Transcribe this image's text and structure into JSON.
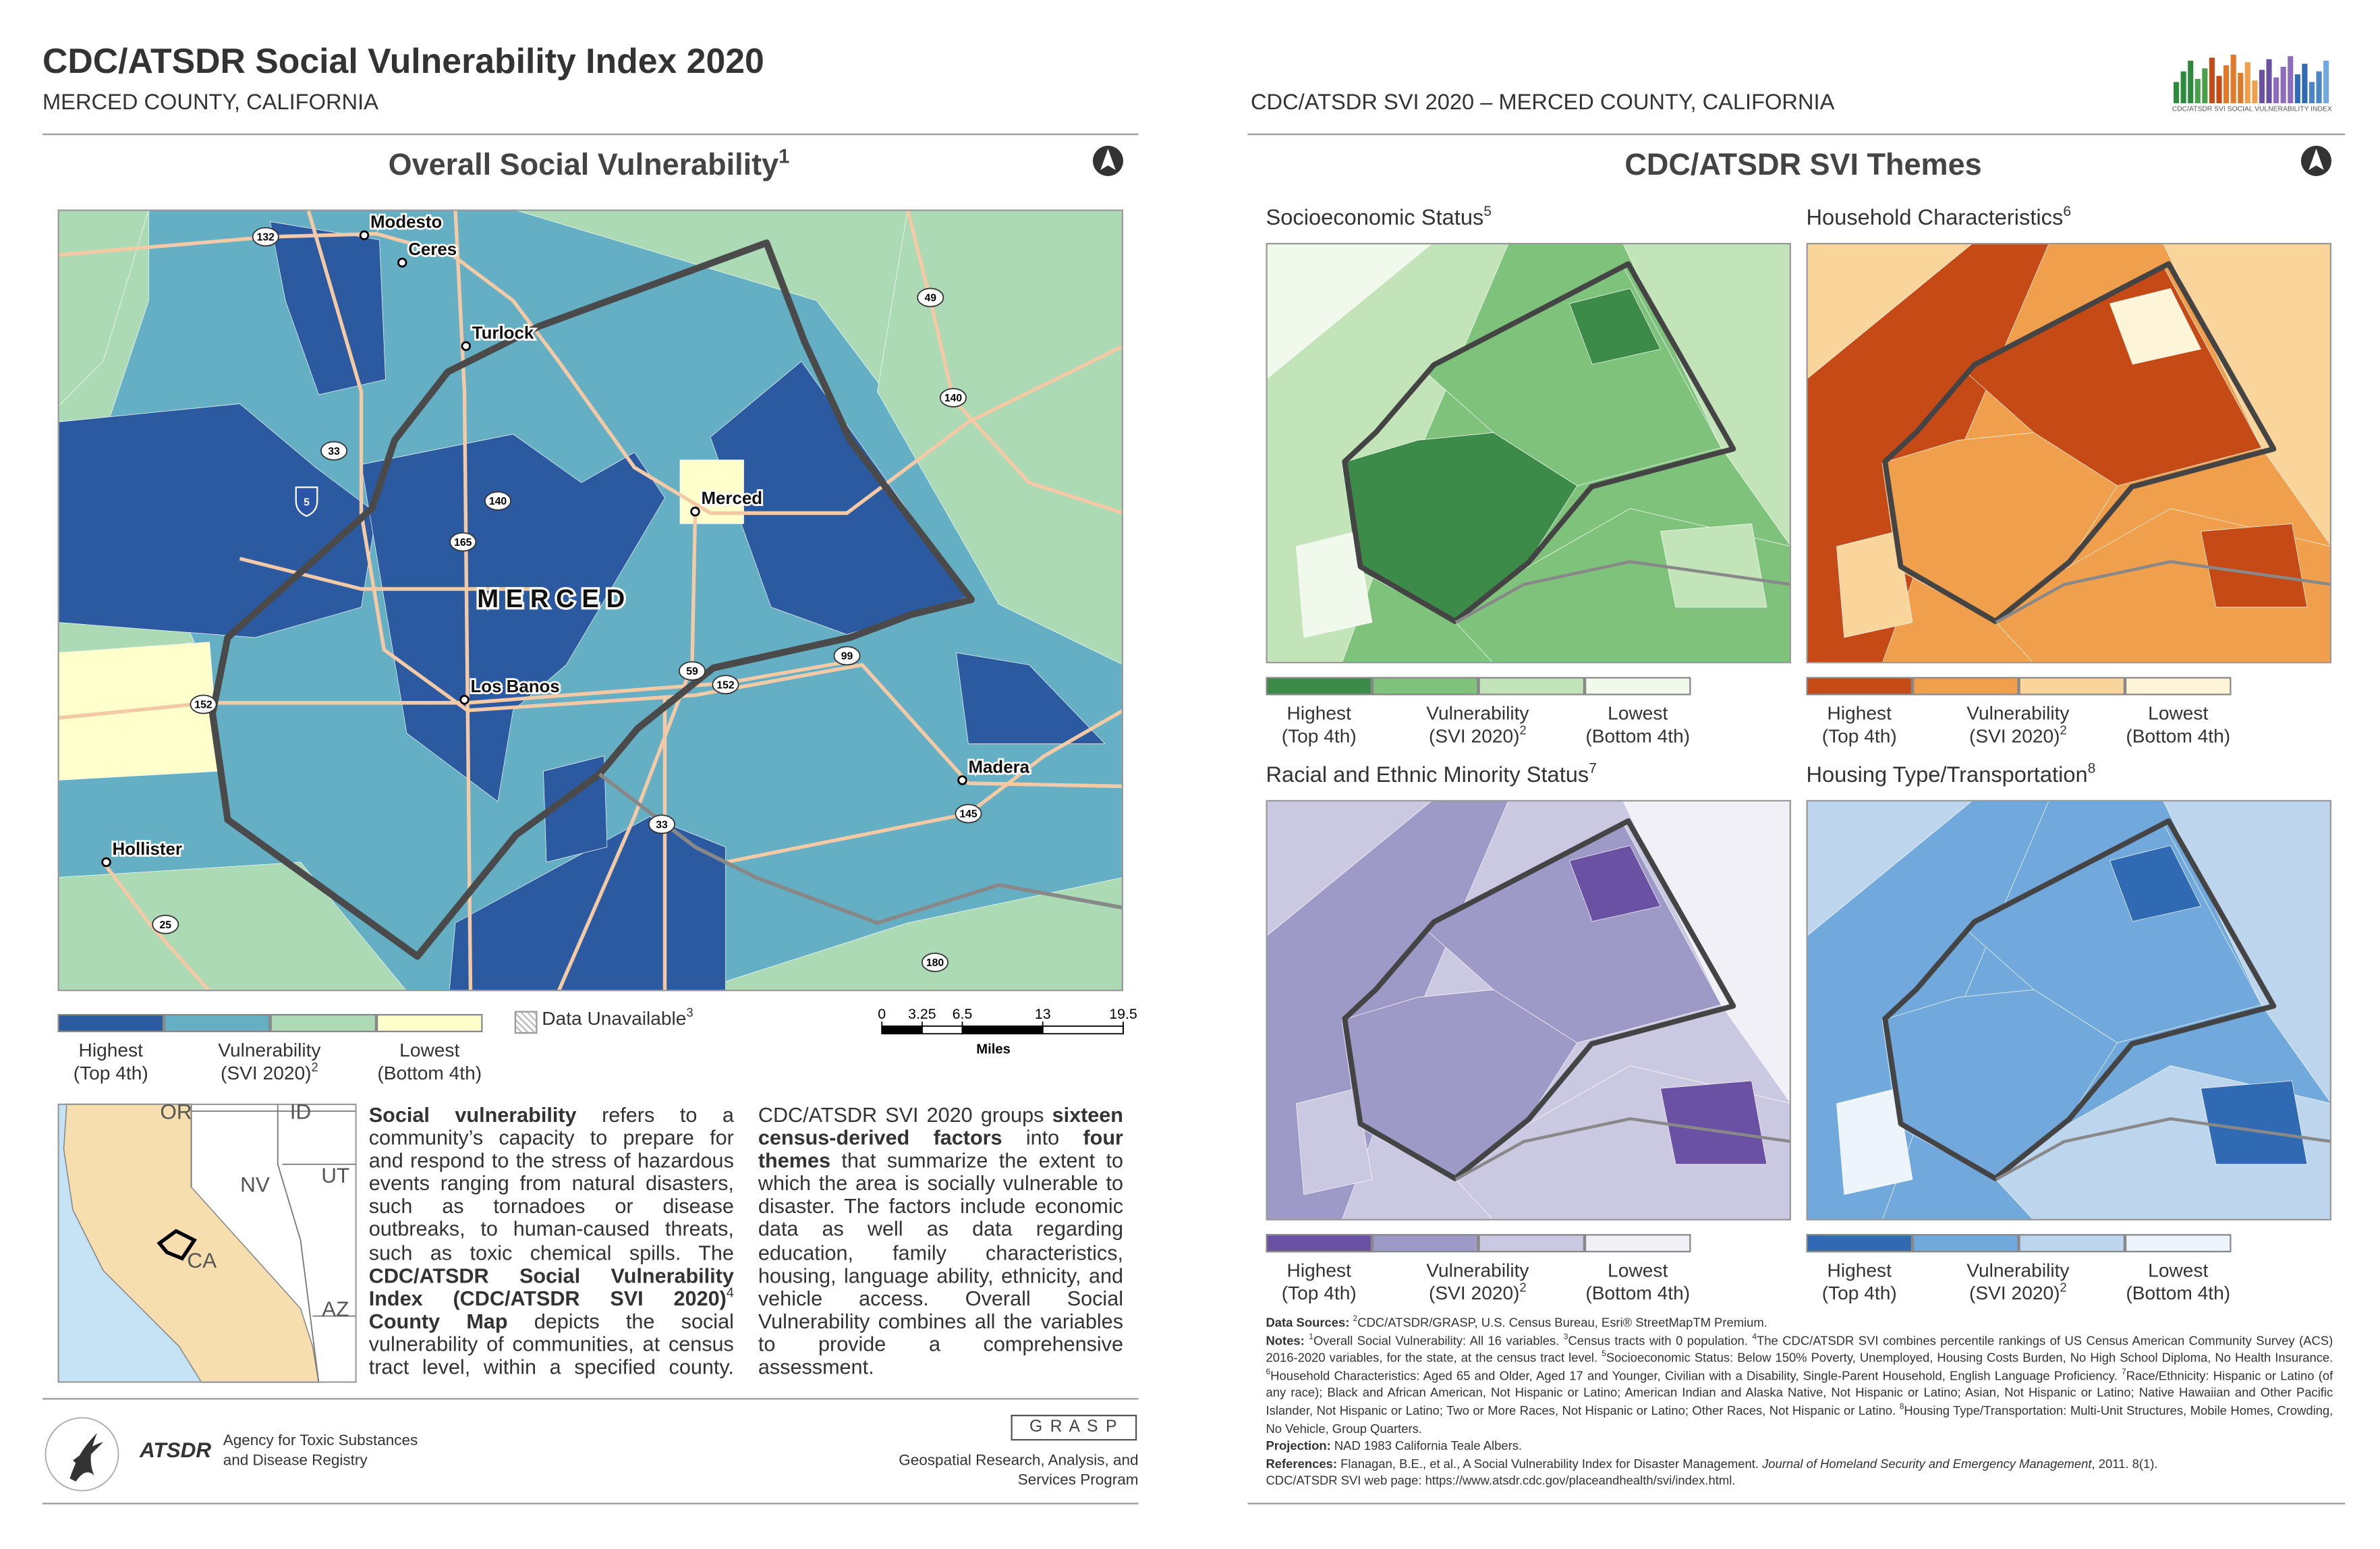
{
  "header": {
    "title": "CDC/ATSDR Social Vulnerability Index 2020",
    "subtitle": "MERCED COUNTY, CALIFORNIA",
    "right_title": "CDC/ATSDR SVI 2020 – MERCED COUNTY, CALIFORNIA",
    "logo_caption": "CDC/ATSDR SVI SOCIAL VULNERABILITY INDEX"
  },
  "overall_map": {
    "title": "Overall Social Vulnerability",
    "title_note": "1",
    "county_label": "M E R C E D",
    "places": [
      "Modesto",
      "Ceres",
      "Turlock",
      "Merced",
      "Los Banos",
      "Madera",
      "Hollister"
    ],
    "routes": [
      "132",
      "49",
      "140",
      "33",
      "5",
      "140",
      "165",
      "59",
      "99",
      "152",
      "152",
      "145",
      "33",
      "25",
      "180"
    ],
    "legend": {
      "colors": [
        "#2c5aa0",
        "#65afc4",
        "#abdab4",
        "#ffffcc"
      ],
      "high": [
        "Highest",
        "(Top 4th)"
      ],
      "mid": [
        "Vulnerability",
        "(SVI 2020)"
      ],
      "mid_note": "2",
      "low": [
        "Lowest",
        "(Bottom 4th)"
      ]
    },
    "unavailable": {
      "text": "Data Unavailable",
      "note": "3"
    },
    "scale": {
      "ticks": [
        0,
        3.25,
        6.5,
        13,
        19.5
      ],
      "unit": "Miles"
    }
  },
  "inset_map": {
    "labels": [
      "OR",
      "ID",
      "NV",
      "UT",
      "CA",
      "AZ"
    ]
  },
  "description": [
    {
      "text": "Social vulnerability",
      "bold": true
    },
    {
      "text": " refers to a community’s capacity to prepare for and respond to the stress of hazardous events ranging from natural disasters, such as tornadoes or disease outbreaks, to human-caused threats, such as toxic chemical spills. The "
    },
    {
      "text": "CDC/ATSDR Social Vulnerability Index (CDC/ATSDR SVI 2020)",
      "bold": true
    },
    {
      "text": "4",
      "sup": true
    },
    {
      "text": " County Map",
      "bold": true
    },
    {
      "text": " depicts the social vulnerability of communities, at census tract level, within a specified county. CDC/ATSDR SVI 2020 groups "
    },
    {
      "text": "sixteen census-derived factors",
      "bold": true
    },
    {
      "text": " into "
    },
    {
      "text": "four themes",
      "bold": true
    },
    {
      "text": " that summarize the extent to which the area is socially vulnerable to disaster. The factors include economic data as well as data regarding education, family characteristics, housing, language ability, ethnicity, and vehicle access. Overall Social Vulnerability combines all the variables to provide a comprehensive assessment."
    }
  ],
  "footer": {
    "atsdr": "ATSDR",
    "agency": [
      "Agency for Toxic Substances",
      "and Disease Registry"
    ],
    "grasp": "G R A S P",
    "program": [
      "Geospatial Research, Analysis, and",
      "Services Program"
    ]
  },
  "themes": {
    "title": "CDC/ATSDR SVI Themes",
    "panels": [
      {
        "title": "Socioeconomic Status",
        "note": "5",
        "legend": {
          "colors": [
            "#3d8b48",
            "#7fc27c",
            "#c3e4b9",
            "#f1f8ec"
          ],
          "high": [
            "Highest",
            "(Top 4th)"
          ],
          "mid": [
            "Vulnerability",
            "(SVI 2020)"
          ],
          "mid_note": "2",
          "low": [
            "Lowest",
            "(Bottom 4th)"
          ]
        }
      },
      {
        "title": "Household Characteristics",
        "note": "6",
        "legend": {
          "colors": [
            "#c64a15",
            "#f0a04c",
            "#f9d49b",
            "#fef5d8"
          ],
          "high": [
            "Highest",
            "(Top 4th)"
          ],
          "mid": [
            "Vulnerability",
            "(SVI 2020)"
          ],
          "mid_note": "2",
          "low": [
            "Lowest",
            "(Bottom 4th)"
          ]
        }
      },
      {
        "title": "Racial and Ethnic Minority Status",
        "note": "7",
        "legend": {
          "colors": [
            "#6a51a3",
            "#9e9ac8",
            "#cbc9e2",
            "#f2f0f7"
          ],
          "high": [
            "Highest",
            "(Top 4th)"
          ],
          "mid": [
            "Vulnerability",
            "(SVI 2020)"
          ],
          "mid_note": "2",
          "low": [
            "Lowest",
            "(Bottom 4th)"
          ]
        }
      },
      {
        "title": "Housing Type/Transportation",
        "note": "8",
        "legend": {
          "colors": [
            "#2f6ab3",
            "#72a9dc",
            "#bdd6ee",
            "#eef4fb"
          ],
          "high": [
            "Highest",
            "(Top 4th)"
          ],
          "mid": [
            "Vulnerability",
            "(SVI 2020)"
          ],
          "mid_note": "2",
          "low": [
            "Lowest",
            "(Bottom 4th)"
          ]
        }
      }
    ]
  },
  "notes": [
    [
      {
        "text": "Data Sources: ",
        "bold": true
      },
      {
        "text": "2",
        "sup": true
      },
      {
        "text": "CDC/ATSDR/GRASP, U.S. Census Bureau, Esri® StreetMapTM Premium."
      }
    ],
    [
      {
        "text": "Notes: ",
        "bold": true
      },
      {
        "text": "1",
        "sup": true
      },
      {
        "text": "Overall Social Vulnerability: All 16 variables. "
      },
      {
        "text": "3",
        "sup": true
      },
      {
        "text": "Census tracts with 0 population. "
      },
      {
        "text": "4",
        "sup": true
      },
      {
        "text": "The CDC/ATSDR SVI combines percentile rankings of US Census American Community Survey (ACS) 2016-2020 variables, for the state, at the census tract level. "
      },
      {
        "text": "5",
        "sup": true
      },
      {
        "text": "Socioeconomic Status: Below 150% Poverty, Unemployed, Housing Costs Burden, No High School Diploma, No Health Insurance. "
      },
      {
        "text": "6",
        "sup": true
      },
      {
        "text": "Household Characteristics: Aged 65 and Older, Aged 17 and Younger, Civilian with a Disability, Single-Parent Household, English Language Proficiency. "
      },
      {
        "text": "7",
        "sup": true
      },
      {
        "text": "Race/Ethnicity: Hispanic or Latino (of any race); Black and African American, Not Hispanic or Latino; American Indian and Alaska Native, Not Hispanic or Latino; Asian, Not Hispanic or Latino; Native Hawaiian and Other Pacific Islander, Not Hispanic or Latino; Two or More Races, Not Hispanic or Latino; Other Races, Not Hispanic or Latino. "
      },
      {
        "text": "8",
        "sup": true
      },
      {
        "text": "Housing Type/Transportation: Multi-Unit Structures, Mobile Homes, Crowding, No Vehicle, Group Quarters."
      }
    ],
    [
      {
        "text": "Projection: ",
        "bold": true
      },
      {
        "text": "NAD 1983 California Teale Albers."
      }
    ],
    [
      {
        "text": "References: ",
        "bold": true
      },
      {
        "text": " Flanagan, B.E., et al., A Social Vulnerability Index for Disaster Management. "
      },
      {
        "text": "Journal of Homeland Security and Emergency Management",
        "italic": true
      },
      {
        "text": ", 2011. 8(1)."
      }
    ],
    [
      {
        "text": "CDC/ATSDR SVI web page: https://www.atsdr.cdc.gov/placeandhealth/svi/index.html."
      }
    ]
  ]
}
